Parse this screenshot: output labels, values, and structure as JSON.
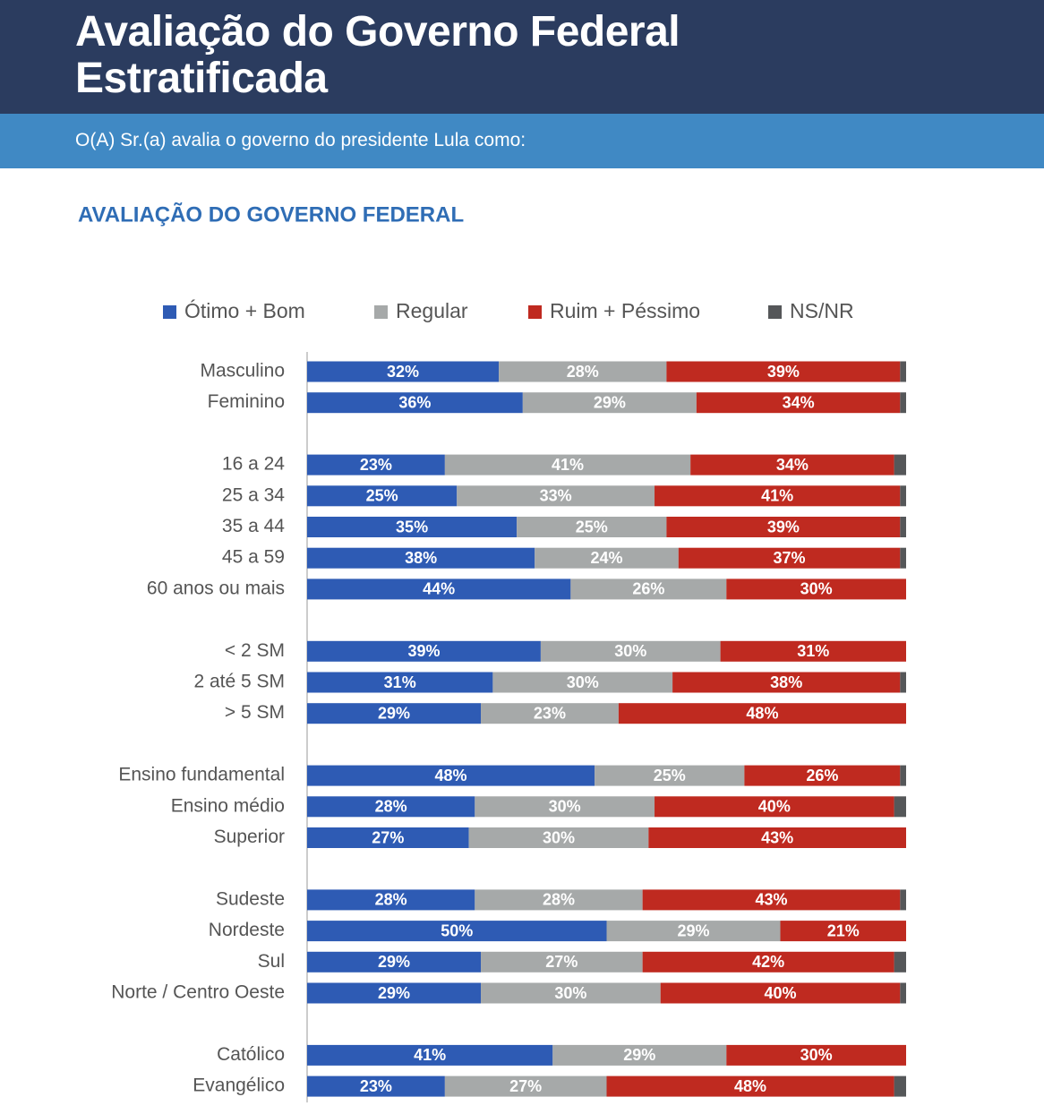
{
  "header": {
    "title": "Avaliação do Governo Federal Estratificada",
    "subtitle": "O(A) Sr.(a) avalia o governo do presidente Lula como:"
  },
  "chart_data": {
    "type": "stacked-bar-horizontal",
    "title": "AVALIAÇÃO DO GOVERNO FEDERAL",
    "categories": [
      "Masculino",
      "Feminino",
      "16 a 24",
      "25 a 34",
      "35 a 44",
      "45 a 59",
      "60 anos ou mais",
      "< 2 SM",
      "2 até 5 SM",
      "> 5 SM",
      "Ensino fundamental",
      "Ensino médio",
      "Superior",
      "Sudeste",
      "Nordeste",
      "Sul",
      "Norte / Centro Oeste",
      "Católico",
      "Evangélico"
    ],
    "xlim": [
      0,
      100
    ],
    "series": [
      {
        "name": "Ótimo + Bom",
        "color": "#2e5bb4",
        "values": [
          32,
          36,
          23,
          25,
          35,
          38,
          44,
          39,
          31,
          29,
          48,
          28,
          27,
          28,
          50,
          29,
          29,
          41,
          23
        ],
        "value_labels": [
          "32%",
          "36%",
          "23%",
          "25%",
          "35%",
          "38%",
          "44%",
          "39%",
          "31%",
          "29%",
          "48%",
          "28%",
          "27%",
          "28%",
          "50%",
          "29%",
          "29%",
          "41%",
          "23%"
        ]
      },
      {
        "name": "Regular",
        "color": "#a6a9a9",
        "values": [
          28,
          29,
          41,
          33,
          25,
          24,
          26,
          30,
          30,
          23,
          25,
          30,
          30,
          28,
          29,
          27,
          30,
          29,
          27
        ],
        "value_labels": [
          "28%",
          "29%",
          "41%",
          "33%",
          "25%",
          "24%",
          "26%",
          "30%",
          "30%",
          "23%",
          "25%",
          "30%",
          "30%",
          "28%",
          "29%",
          "27%",
          "30%",
          "29%",
          "27%"
        ]
      },
      {
        "name": "Ruim + Péssimo",
        "color": "#bf2a20",
        "values": [
          39,
          34,
          34,
          41,
          39,
          37,
          30,
          31,
          38,
          48,
          26,
          40,
          43,
          43,
          21,
          42,
          40,
          30,
          48
        ],
        "value_labels": [
          "39%",
          "34%",
          "34%",
          "41%",
          "39%",
          "37%",
          "30%",
          "31%",
          "38%",
          "48%",
          "26%",
          "40%",
          "43%",
          "43%",
          "21%",
          "42%",
          "40%",
          "30%",
          "48%"
        ]
      },
      {
        "name": "NS/NR",
        "color": "#555759",
        "values": [
          1,
          1,
          2,
          1,
          1,
          1,
          0,
          0,
          1,
          0,
          1,
          2,
          0,
          1,
          0,
          2,
          1,
          0,
          2
        ]
      }
    ]
  }
}
